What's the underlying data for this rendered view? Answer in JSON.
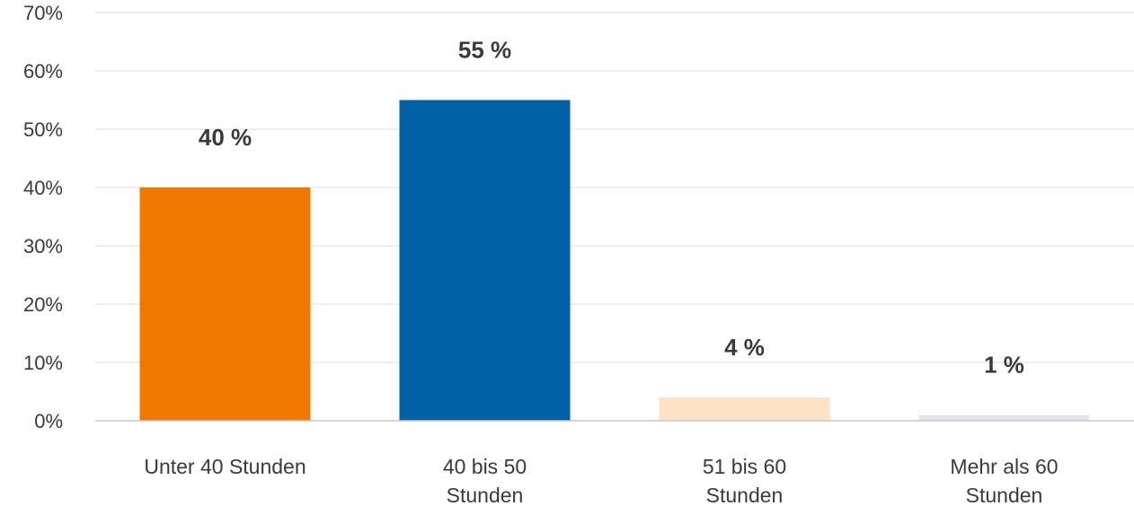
{
  "chart_data": {
    "type": "bar",
    "title": "",
    "xlabel": "",
    "ylabel": "",
    "categories": [
      [
        "Unter 40 Stunden"
      ],
      [
        "40 bis 50",
        "Stunden"
      ],
      [
        "51 bis 60",
        "Stunden"
      ],
      [
        "Mehr als 60",
        "Stunden"
      ]
    ],
    "values": [
      40,
      55,
      4,
      1
    ],
    "data_labels": [
      "40 %",
      "55 %",
      "4 %",
      "1 %"
    ],
    "colors": [
      "#f07800",
      "#0061a6",
      "#fde2c6",
      "#e3e7ec"
    ],
    "ylim": [
      0,
      70
    ],
    "yticks": [
      0,
      10,
      20,
      30,
      40,
      50,
      60,
      70
    ],
    "ytick_labels": [
      "0%",
      "10%",
      "20%",
      "30%",
      "40%",
      "50%",
      "60%",
      "70%"
    ],
    "grid": true,
    "legend": "none"
  }
}
